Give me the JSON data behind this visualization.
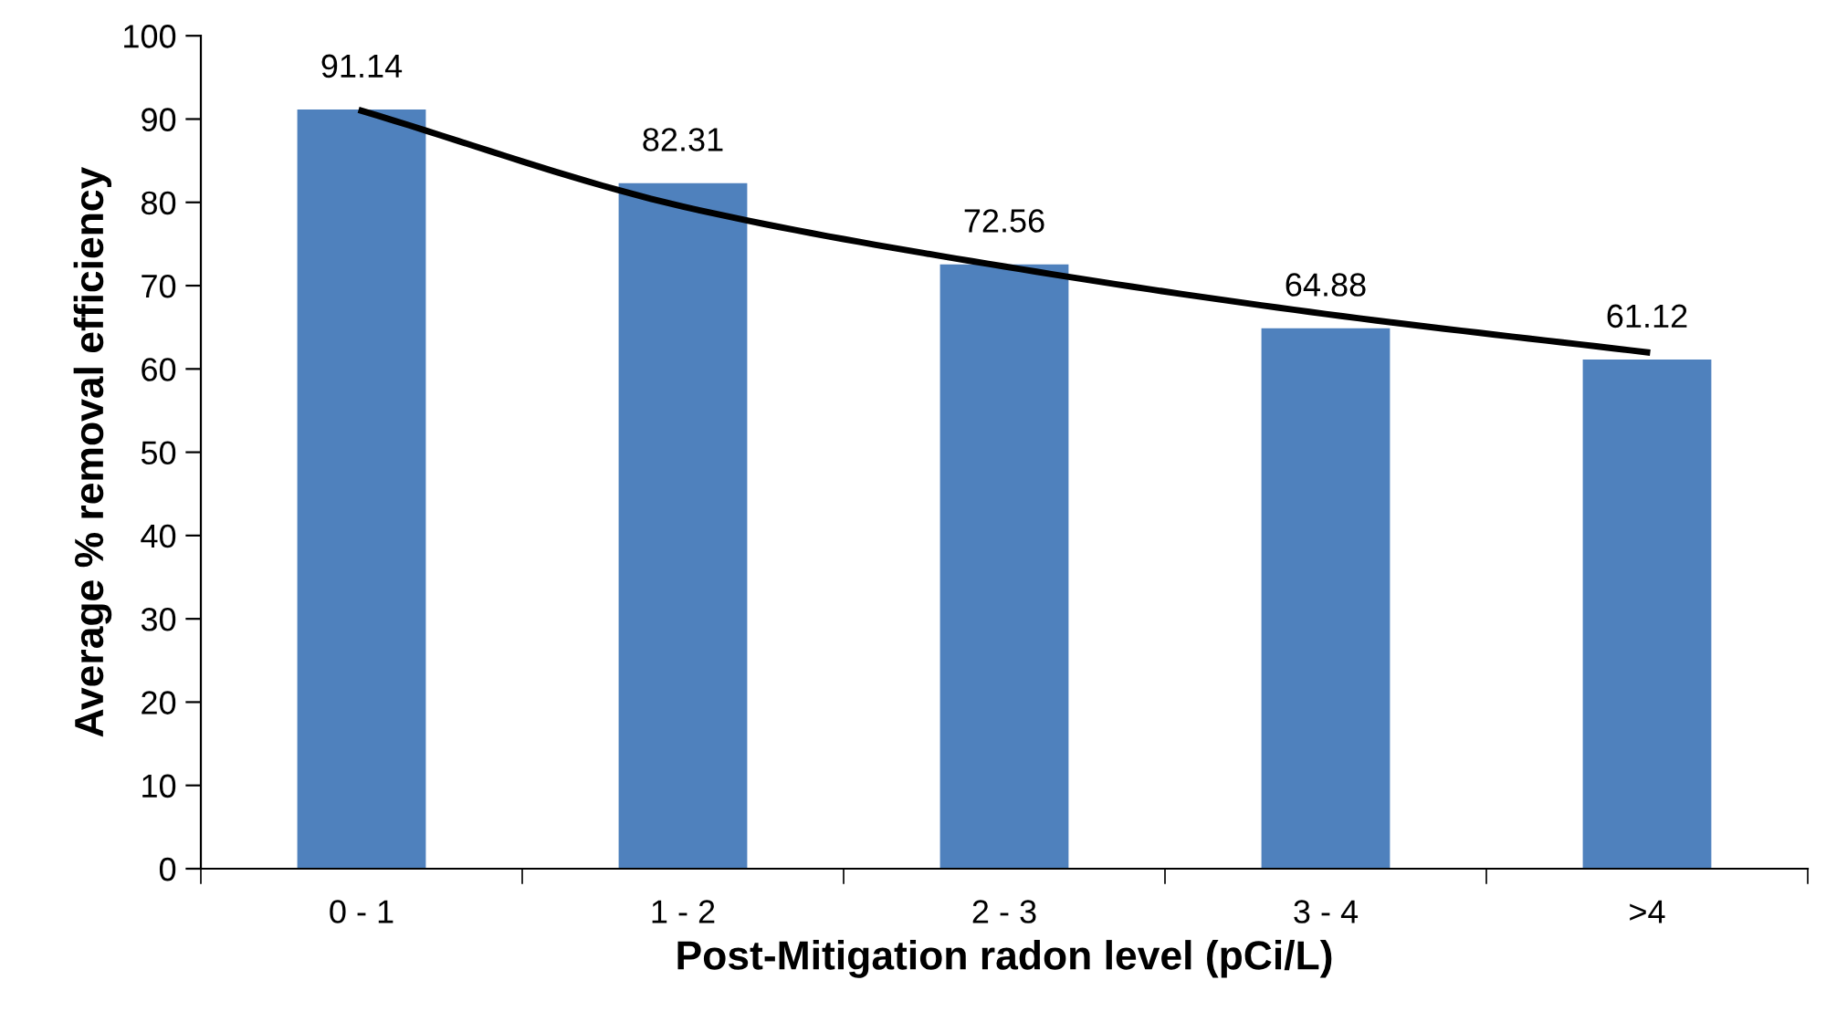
{
  "chart_data": {
    "type": "bar",
    "xlabel": "Post-Mitigation radon level (pCi/L)",
    "ylabel": "Average % removal efficiency",
    "categories": [
      "0 - 1",
      "1 - 2",
      "2 - 3",
      "3 - 4",
      ">4"
    ],
    "series": [
      {
        "color": "#4f81bd",
        "values": [
          91.14,
          82.31,
          72.56,
          64.88,
          61.12
        ],
        "value_labels": [
          "91.14",
          "82.31",
          "72.56",
          "64.88",
          "61.12"
        ]
      },
      {
        "type": "line",
        "color": "#000000",
        "values": [
          91.0,
          79.5,
          72.3,
          66.6,
          62.0
        ]
      }
    ],
    "ylim": [
      0,
      100
    ],
    "yticks": [
      0,
      10,
      20,
      30,
      40,
      50,
      60,
      70,
      80,
      90,
      100
    ],
    "grid": false,
    "legend": false
  }
}
